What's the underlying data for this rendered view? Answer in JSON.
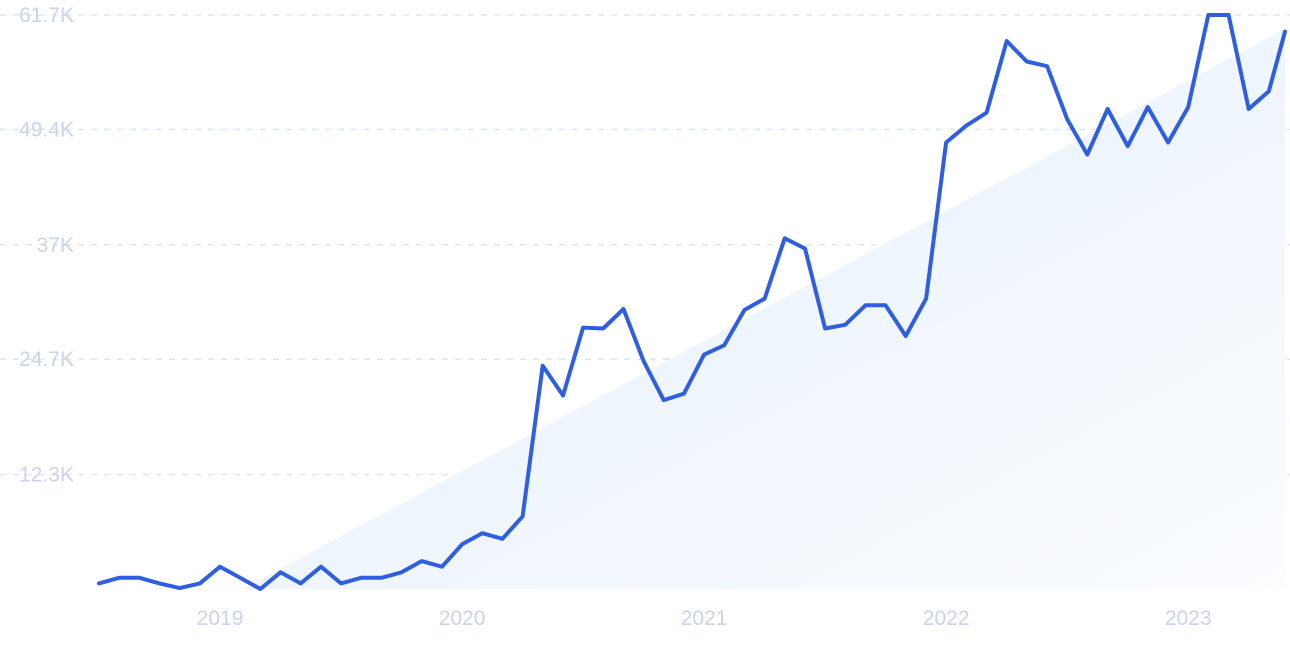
{
  "chart_data": {
    "type": "line",
    "title": "",
    "xlabel": "",
    "ylabel": "",
    "y_ticks": [
      "61.7K",
      "49.4K",
      "37K",
      "24.7K",
      "12.3K"
    ],
    "y_tick_values": [
      61700,
      49400,
      37000,
      24700,
      12300
    ],
    "ylim": [
      0,
      61700
    ],
    "x_ticks": [
      "2019",
      "2020",
      "2021",
      "2022",
      "2023"
    ],
    "x_tick_values": [
      2019.0,
      2020.0,
      2021.0,
      2022.0,
      2023.0
    ],
    "xlim": [
      2018.5,
      2023.4
    ],
    "grid": "horizontal dashed",
    "trend_area": true,
    "colors": {
      "line": "#2f5fe0",
      "area": "#e6f0fc",
      "grid": "#dbe6f2",
      "ticks": "#c9d3ea"
    },
    "series": [
      {
        "x": [
          2018.5,
          2018.583,
          2018.667,
          2018.75,
          2018.833,
          2018.917,
          2019.0,
          2019.083,
          2019.167,
          2019.25,
          2019.333,
          2019.417,
          2019.5,
          2019.583,
          2019.667,
          2019.75,
          2019.833,
          2019.917,
          2020.0,
          2020.083,
          2020.167,
          2020.25,
          2020.333,
          2020.417,
          2020.5,
          2020.583,
          2020.667,
          2020.75,
          2020.833,
          2020.917,
          2021.0,
          2021.083,
          2021.167,
          2021.25,
          2021.333,
          2021.417,
          2021.5,
          2021.583,
          2021.667,
          2021.75,
          2021.833,
          2021.917,
          2022.0,
          2022.083,
          2022.167,
          2022.25,
          2022.333,
          2022.417,
          2022.5,
          2022.583,
          2022.667,
          2022.75,
          2022.833,
          2022.917,
          2023.0,
          2023.083,
          2023.167,
          2023.25,
          2023.333,
          2023.4
        ],
        "values": [
          600,
          1200,
          1200,
          600,
          100,
          600,
          2400,
          1200,
          0,
          1800,
          600,
          2400,
          600,
          1200,
          1200,
          1800,
          3000,
          2400,
          4800,
          6000,
          5400,
          7800,
          24000,
          20800,
          28100,
          28000,
          30100,
          24500,
          20300,
          21000,
          25200,
          26200,
          30000,
          31200,
          37700,
          36600,
          28000,
          28400,
          30500,
          30500,
          27200,
          31200,
          48000,
          49800,
          51200,
          58900,
          56700,
          56200,
          50500,
          46700,
          51600,
          47600,
          51800,
          48000,
          51800,
          61700,
          61700,
          51600,
          53500,
          59900
        ]
      }
    ]
  }
}
